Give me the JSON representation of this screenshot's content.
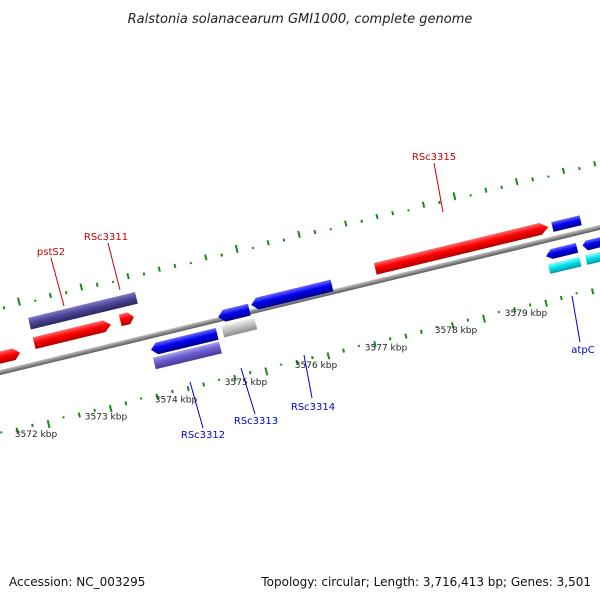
{
  "title": "Ralstonia solanacearum GMI1000, complete genome",
  "footer": {
    "accession": "Accession: NC_003295",
    "summary": "Topology: circular; Length: 3,716,413 bp; Genes: 3,501"
  },
  "colors": {
    "forward_gene": "#ff0000",
    "forward_gene_dark": "#cc0000",
    "reverse_gene": "#0000ee",
    "reverse_gene_dark": "#0000a0",
    "purple_gene": "#4b4596",
    "lavender_gene": "#6a5acd",
    "gray_gene": "#bdbdbd",
    "cyan_gene": "#00e5ee",
    "backbone": "#8a8a8a",
    "gc_ticks": "#1a8a1a",
    "label_forward": "#cc0000",
    "label_reverse": "#0000cc"
  },
  "scale": {
    "unit": "kbp",
    "ticks": [
      {
        "value": 3572,
        "label": "3572 kbp"
      },
      {
        "value": 3573,
        "label": "3573 kbp"
      },
      {
        "value": 3574,
        "label": "3574 kbp"
      },
      {
        "value": 3575,
        "label": "3575 kbp"
      },
      {
        "value": 3576,
        "label": "3576 kbp"
      },
      {
        "value": 3577,
        "label": "3577 kbp"
      },
      {
        "value": 3578,
        "label": "3578 kbp"
      },
      {
        "value": 3579,
        "label": "3579 kbp"
      }
    ]
  },
  "gene_labels": {
    "pstS2": "pstS2",
    "RSc3311": "RSc3311",
    "RSc3315": "RSc3315",
    "RSc3312": "RSc3312",
    "RSc3313": "RSc3313",
    "RSc3314": "RSc3314",
    "atpC": "atpC"
  }
}
